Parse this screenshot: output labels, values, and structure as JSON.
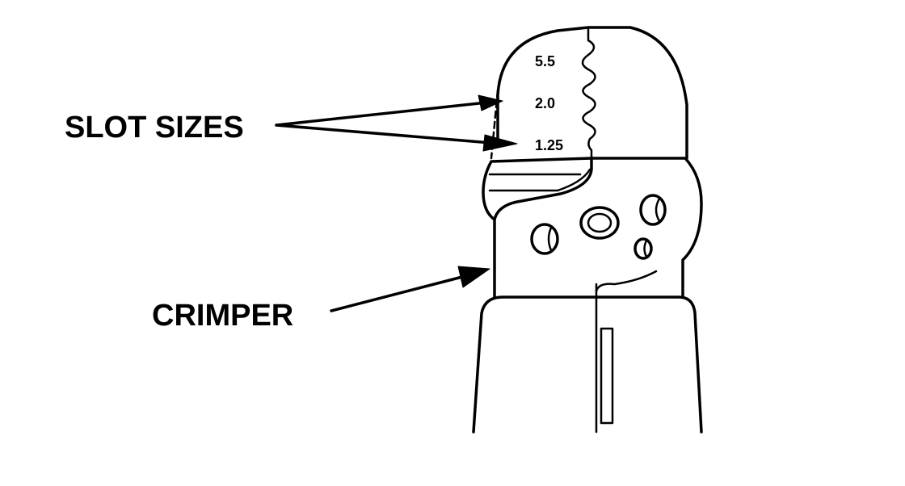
{
  "callouts": {
    "slot_sizes": "SLOT SIZES",
    "crimper": "CRIMPER"
  },
  "slot_labels": [
    "5.5",
    "2.0",
    "1.25"
  ],
  "colors": {
    "ink": "#000000",
    "background": "#ffffff"
  }
}
